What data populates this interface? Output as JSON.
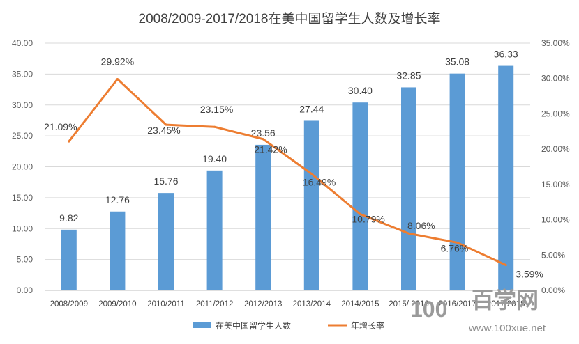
{
  "chart_data": {
    "type": "bar+line",
    "title": "2008/2009-2017/2018在美中国留学生人数及增长率",
    "categories": [
      "2008/2009",
      "2009/2010",
      "2010/2011",
      "2011/2012",
      "2012/2013",
      "2013/2014",
      "2014/2015",
      "2015/ 2016",
      "2016/2017",
      "2017/2018"
    ],
    "series": [
      {
        "name": "在美中国留学生人数",
        "type": "bar",
        "axis": "left",
        "values": [
          9.82,
          12.76,
          15.76,
          19.4,
          23.56,
          27.44,
          30.4,
          32.85,
          35.08,
          36.33
        ],
        "labels": [
          "9.82",
          "12.76",
          "15.76",
          "19.40",
          "23.56",
          "27.44",
          "30.40",
          "32.85",
          "35.08",
          "36.33"
        ],
        "color": "#5b9bd5"
      },
      {
        "name": "年增长率",
        "type": "line",
        "axis": "right",
        "values": [
          21.09,
          29.92,
          23.45,
          23.15,
          21.42,
          16.49,
          10.79,
          8.06,
          6.76,
          3.59
        ],
        "labels": [
          "21.09%",
          "29.92%",
          "23.45%",
          "23.15%",
          "21.42%",
          "16.49%",
          "10.79%",
          "8.06%",
          "6.76%",
          "3.59%"
        ],
        "color": "#ed7d31"
      }
    ],
    "y_left": {
      "min": 0,
      "max": 40,
      "ticks": [
        "0.00",
        "5.00",
        "10.00",
        "15.00",
        "20.00",
        "25.00",
        "30.00",
        "35.00",
        "40.00"
      ]
    },
    "y_right": {
      "min": 0,
      "max": 35,
      "ticks": [
        "0.00%",
        "5.00%",
        "10.00%",
        "15.00%",
        "20.00%",
        "25.00%",
        "30.00%",
        "35.00%"
      ]
    },
    "grid": true,
    "legend": "bottom",
    "highlight_color": "#ff0000"
  },
  "watermark": {
    "text": "百学网",
    "url": "www.100xue.net",
    "logo_text": "100"
  }
}
